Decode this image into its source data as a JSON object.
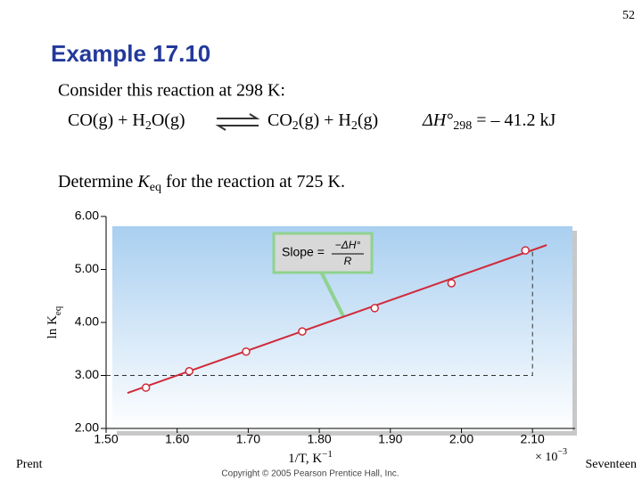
{
  "page_number": "52",
  "title": "Example 17.10",
  "intro": "Consider this reaction at 298 K:",
  "equation": {
    "reactants": [
      "CO(g) + H",
      "2",
      "O(g)"
    ],
    "products": [
      "CO",
      "2",
      "(g) + H",
      "2",
      "(g)"
    ],
    "enthalpy": [
      "ΔH°",
      "298",
      " = – 41.2 kJ"
    ]
  },
  "question": [
    "Determine ",
    "K",
    "eq",
    " for the reaction at 725 K."
  ],
  "footer_left": "Prent",
  "footer_right": "Seventeen",
  "copyright": "Copyright © 2005 Pearson Prentice Hall, Inc.",
  "chart_data": {
    "type": "scatter",
    "x": [
      1.556,
      1.617,
      1.697,
      1.776,
      1.878,
      1.986,
      2.09
    ],
    "y": [
      2.77,
      3.08,
      3.45,
      3.83,
      4.27,
      4.74,
      5.36
    ],
    "color": "#d02a3a",
    "fit_line": {
      "x": [
        1.53,
        2.12
      ],
      "y": [
        2.67,
        5.46
      ]
    },
    "guide": {
      "x": [
        1.5,
        2.1,
        2.1
      ],
      "y": [
        3.0,
        3.0,
        5.36
      ]
    },
    "xlim": [
      1.5,
      2.16
    ],
    "ylim": [
      2.0,
      6.0
    ],
    "xticks": [
      {
        "value": 1.5,
        "label": "1.50"
      },
      {
        "value": 1.6,
        "label": "1.60"
      },
      {
        "value": 1.7,
        "label": "1.70"
      },
      {
        "value": 1.8,
        "label": "1.80"
      },
      {
        "value": 1.9,
        "label": "1.90"
      },
      {
        "value": 2.0,
        "label": "2.00"
      },
      {
        "value": 2.1,
        "label": "2.10"
      }
    ],
    "yticks": [
      {
        "value": 2,
        "label": "2.00"
      },
      {
        "value": 3,
        "label": "3.00"
      },
      {
        "value": 4,
        "label": "4.00"
      },
      {
        "value": 5,
        "label": "5.00"
      },
      {
        "value": 6,
        "label": "6.00"
      }
    ],
    "x_label": [
      "1/T,  K",
      "−1"
    ],
    "x_multiplier": [
      "× 10",
      "−3"
    ],
    "y_label": [
      "ln K",
      "eq"
    ],
    "annotation": [
      "Slope =",
      "−ΔH°",
      "R"
    ]
  }
}
